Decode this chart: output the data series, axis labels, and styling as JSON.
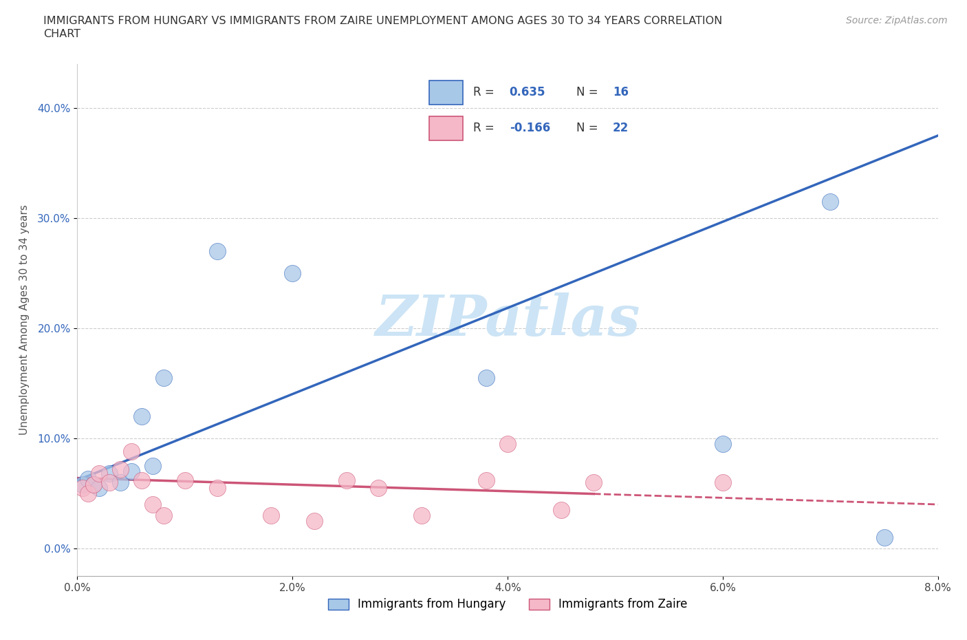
{
  "title_line1": "IMMIGRANTS FROM HUNGARY VS IMMIGRANTS FROM ZAIRE UNEMPLOYMENT AMONG AGES 30 TO 34 YEARS CORRELATION",
  "title_line2": "CHART",
  "source_text": "Source: ZipAtlas.com",
  "ylabel": "Unemployment Among Ages 30 to 34 years",
  "legend_label1": "Immigrants from Hungary",
  "legend_label2": "Immigrants from Zaire",
  "R1": 0.635,
  "N1": 16,
  "R2": -0.166,
  "N2": 22,
  "xlim": [
    0.0,
    0.08
  ],
  "ylim": [
    -0.025,
    0.44
  ],
  "xticks": [
    0.0,
    0.02,
    0.04,
    0.06,
    0.08
  ],
  "yticks": [
    0.0,
    0.1,
    0.2,
    0.3,
    0.4
  ],
  "color_hungary": "#a8c8e8",
  "color_zaire": "#f5b8c8",
  "color_line_hungary": "#3366bb",
  "color_line_zaire": "#cc5577",
  "watermark_color": "#cce4f5",
  "hungary_x": [
    0.0005,
    0.001,
    0.0015,
    0.002,
    0.003,
    0.004,
    0.005,
    0.006,
    0.007,
    0.008,
    0.013,
    0.02,
    0.038,
    0.06,
    0.07,
    0.075
  ],
  "hungary_y": [
    0.058,
    0.063,
    0.058,
    0.055,
    0.068,
    0.06,
    0.07,
    0.12,
    0.075,
    0.155,
    0.27,
    0.25,
    0.155,
    0.095,
    0.315,
    0.01
  ],
  "zaire_x": [
    0.0005,
    0.001,
    0.0015,
    0.002,
    0.003,
    0.004,
    0.005,
    0.006,
    0.007,
    0.008,
    0.01,
    0.013,
    0.018,
    0.022,
    0.025,
    0.028,
    0.032,
    0.038,
    0.04,
    0.045,
    0.048,
    0.06
  ],
  "zaire_y": [
    0.055,
    0.05,
    0.058,
    0.068,
    0.06,
    0.072,
    0.088,
    0.062,
    0.04,
    0.03,
    0.062,
    0.055,
    0.03,
    0.025,
    0.062,
    0.055,
    0.03,
    0.062,
    0.095,
    0.035,
    0.06,
    0.06
  ],
  "line1_x0": 0.0,
  "line1_x1": 0.08,
  "line1_y0": 0.062,
  "line1_y1": 0.375,
  "line2_x0": 0.0,
  "line2_x1": 0.08,
  "line2_y0": 0.064,
  "line2_y1": 0.04,
  "line2_solid_end": 0.048
}
